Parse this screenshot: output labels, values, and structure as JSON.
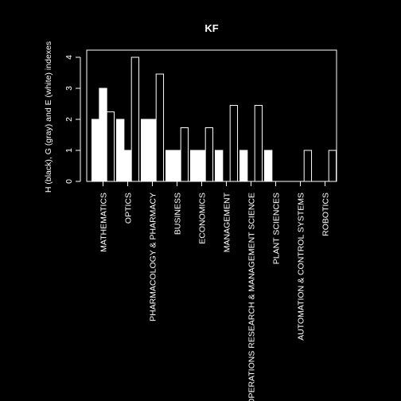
{
  "chart_data": {
    "type": "bar",
    "title": "KF",
    "xlabel": "",
    "ylabel": "H (black), G (gray) and E (white) indexes",
    "ylim": [
      0,
      4
    ],
    "yticks": [
      0,
      1,
      2,
      3,
      4
    ],
    "categories": [
      "MATHEMATICS",
      "OPTICS",
      "PHARMACOLOGY & PHARMACY",
      "BUSINESS",
      "ECONOMICS",
      "MANAGEMENT",
      "OPERATIONS RESEARCH & MANAGEMENT SCIENCE",
      "PLANT SCIENCES",
      "AUTOMATION & CONTROL SYSTEMS",
      "ROBOTICS"
    ],
    "series": [
      {
        "name": "H",
        "values": [
          2,
          2,
          2,
          1,
          1,
          1,
          1,
          1,
          0,
          0
        ]
      },
      {
        "name": "G",
        "values": [
          3,
          1,
          2,
          1,
          1,
          0,
          0,
          0,
          0,
          0
        ]
      },
      {
        "name": "E",
        "values": [
          2.24,
          4,
          3.46,
          1.73,
          1.73,
          2.45,
          2.45,
          0,
          1,
          1
        ]
      }
    ],
    "colors": {
      "background": "#000000",
      "H": "#ffffff",
      "G": "#ffffff",
      "E": "#000000",
      "E_border": "#ffffff",
      "axis": "#ffffff"
    },
    "grid": false,
    "legend": "none"
  }
}
